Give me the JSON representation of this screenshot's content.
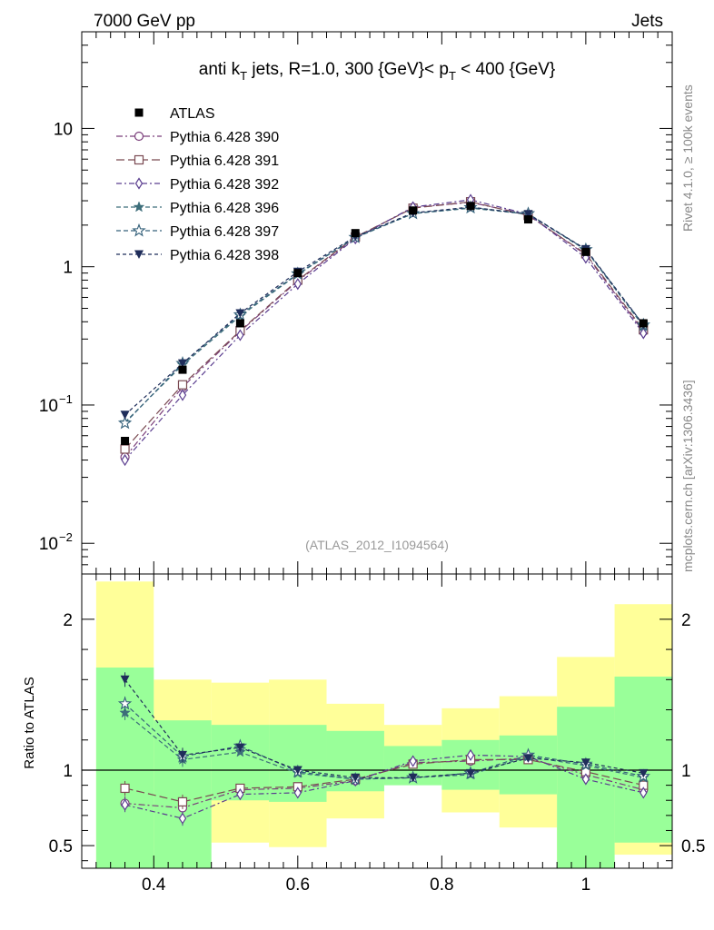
{
  "header": {
    "left": "7000 GeV pp",
    "right": "Jets"
  },
  "side": {
    "rivet": "Rivet 4.1.0, ≥ 100k events",
    "source": "mcplots.cern.ch [arXiv:1306.3436]"
  },
  "chart_data": {
    "type": "line",
    "title_parts": {
      "pre": "anti k",
      "sub1": "T",
      "mid": " jets, R=1.0,  300 {GeV}< p",
      "sub2": "T",
      "post": " < 400 {GeV}"
    },
    "analysis_tag": "(ATLAS_2012_I1094564)",
    "x": [
      0.36,
      0.44,
      0.52,
      0.6,
      0.68,
      0.76,
      0.84,
      0.92,
      1.0,
      1.08
    ],
    "xlim": [
      0.3,
      1.12
    ],
    "x_ticks": [
      "0.4",
      "0.6",
      "0.8",
      "1"
    ],
    "main": {
      "yscale": "log",
      "ylim": [
        0.006,
        50
      ],
      "y_ticks": [
        {
          "value": 10,
          "label": "10"
        },
        {
          "value": 1,
          "label": "1"
        },
        {
          "value": 0.1,
          "label": "10",
          "exp": "−1"
        },
        {
          "value": 0.01,
          "label": "10",
          "exp": "−2"
        }
      ]
    },
    "ratio": {
      "ylabel": "Ratio to ATLAS",
      "ylim": [
        0.35,
        2.3
      ],
      "y_ticks": [
        "0.5",
        "1",
        "2"
      ],
      "band_edges": [
        0.32,
        0.4,
        0.48,
        0.56,
        0.64,
        0.72,
        0.8,
        0.88,
        0.96,
        1.04,
        1.12
      ],
      "yellow_band": [
        [
          0.18,
          2.25
        ],
        [
          0.48,
          1.6
        ],
        [
          0.52,
          1.58
        ],
        [
          0.49,
          1.6
        ],
        [
          0.68,
          1.44
        ],
        [
          1.12,
          1.3
        ],
        [
          0.72,
          1.41
        ],
        [
          0.62,
          1.49
        ],
        [
          0.3,
          1.75
        ],
        [
          0.44,
          2.1
        ]
      ],
      "green_band": [
        [
          0.32,
          1.68
        ],
        [
          0.33,
          1.33
        ],
        [
          0.8,
          1.3
        ],
        [
          0.79,
          1.3
        ],
        [
          0.86,
          1.26
        ],
        [
          0.9,
          1.16
        ],
        [
          0.87,
          1.2
        ],
        [
          0.84,
          1.23
        ],
        [
          0.3,
          1.42
        ],
        [
          0.52,
          1.62
        ]
      ]
    },
    "data": {
      "name": "ATLAS",
      "color": "#000000",
      "values": [
        0.055,
        0.18,
        0.39,
        0.9,
        1.75,
        2.55,
        2.75,
        2.2,
        1.28,
        0.39
      ]
    },
    "series": [
      {
        "name": "Pythia 6.428 390",
        "color": "#7b3f7b",
        "marker": "open-circle",
        "dash": "7,3,2,3",
        "values": [
          0.042,
          0.135,
          0.34,
          0.79,
          1.62,
          2.68,
          2.92,
          2.38,
          1.22,
          0.34
        ],
        "ratio": [
          0.78,
          0.75,
          0.87,
          0.88,
          0.93,
          1.05,
          1.06,
          1.08,
          0.97,
          0.87
        ]
      },
      {
        "name": "Pythia 6.428 391",
        "color": "#7a4a52",
        "marker": "open-square",
        "dash": "9,4",
        "values": [
          0.048,
          0.14,
          0.345,
          0.8,
          1.64,
          2.65,
          2.95,
          2.35,
          1.24,
          0.35
        ],
        "ratio": [
          0.88,
          0.79,
          0.88,
          0.89,
          0.94,
          1.04,
          1.07,
          1.07,
          0.99,
          0.9
        ]
      },
      {
        "name": "Pythia 6.428 392",
        "color": "#5a3d8f",
        "marker": "open-diamond",
        "dash": "6,3,2,3",
        "values": [
          0.04,
          0.118,
          0.32,
          0.75,
          1.6,
          2.7,
          3.05,
          2.4,
          1.16,
          0.33
        ],
        "ratio": [
          0.77,
          0.68,
          0.84,
          0.85,
          0.93,
          1.06,
          1.1,
          1.09,
          0.94,
          0.85
        ]
      },
      {
        "name": "Pythia 6.428 396",
        "color": "#3d6e7a",
        "marker": "filled-star",
        "dash": "5,3",
        "values": [
          0.075,
          0.195,
          0.44,
          0.88,
          1.62,
          2.42,
          2.65,
          2.4,
          1.32,
          0.37
        ],
        "ratio": [
          1.38,
          1.07,
          1.12,
          0.98,
          0.94,
          0.95,
          0.97,
          1.09,
          1.03,
          0.95
        ]
      },
      {
        "name": "Pythia 6.428 397",
        "color": "#34607a",
        "marker": "open-star",
        "dash": "5,3",
        "values": [
          0.074,
          0.2,
          0.45,
          0.89,
          1.63,
          2.43,
          2.68,
          2.42,
          1.33,
          0.38
        ],
        "ratio": [
          1.44,
          1.09,
          1.16,
          0.99,
          0.94,
          0.95,
          0.98,
          1.1,
          1.04,
          0.96
        ]
      },
      {
        "name": "Pythia 6.428 398",
        "color": "#1f2d5a",
        "marker": "filled-triangle-down",
        "dash": "4,3",
        "values": [
          0.085,
          0.2,
          0.46,
          0.92,
          1.65,
          2.45,
          2.7,
          2.4,
          1.34,
          0.38
        ],
        "ratio": [
          1.6,
          1.1,
          1.15,
          1.0,
          0.95,
          0.95,
          0.98,
          1.08,
          1.05,
          0.98
        ]
      }
    ]
  }
}
